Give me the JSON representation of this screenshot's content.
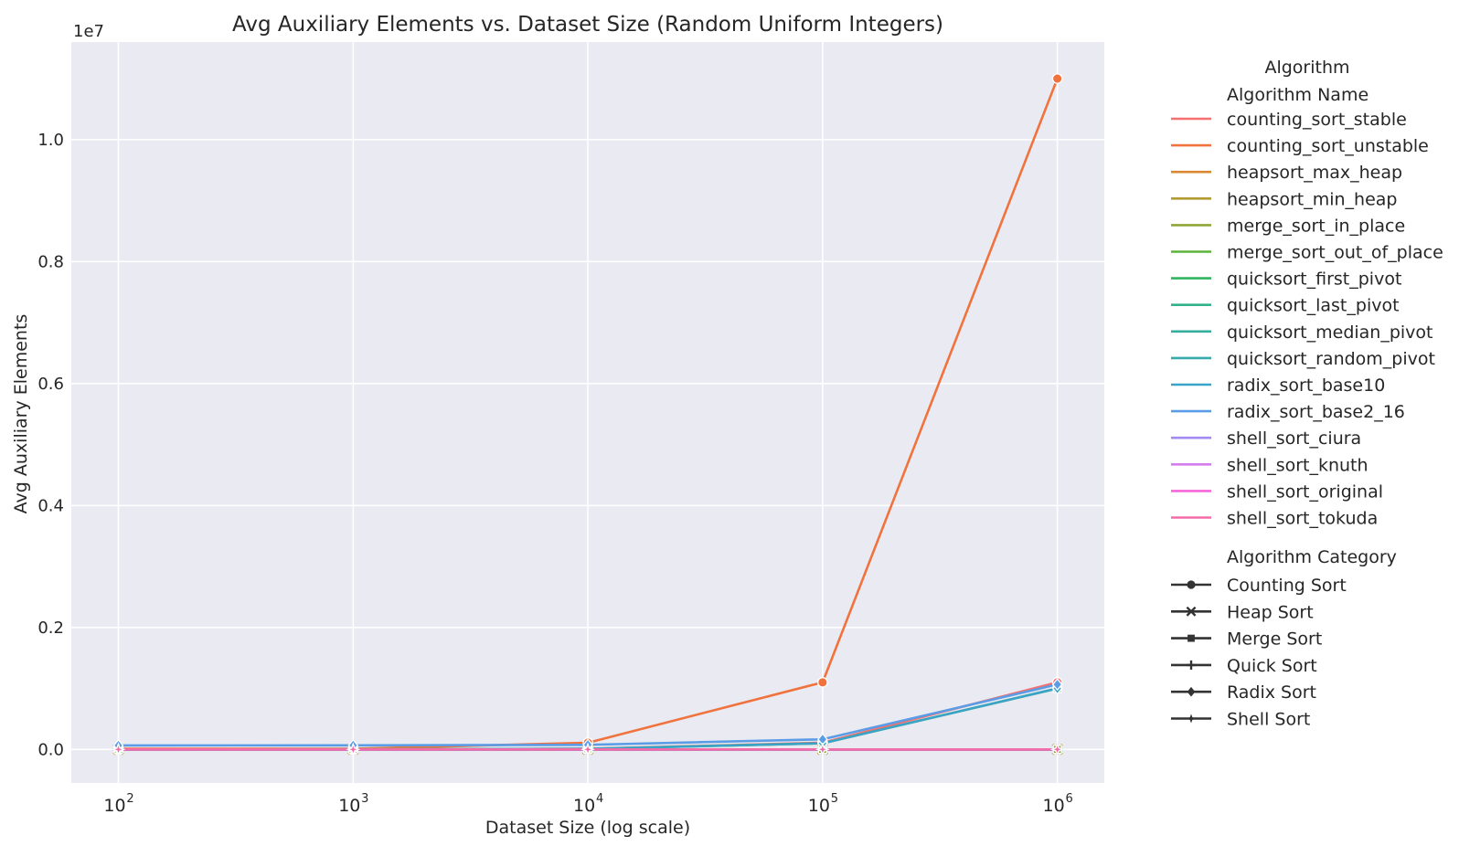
{
  "chart_data": {
    "type": "line",
    "title": "Avg Auxiliary Elements vs. Dataset Size (Random Uniform Integers)",
    "xlabel": "Dataset Size (log scale)",
    "ylabel": "Avg Auxiliary Elements",
    "x_scale": "log",
    "x": [
      100,
      1000,
      10000,
      100000,
      1000000
    ],
    "x_tick_labels": [
      {
        "base": "10",
        "exp": "2"
      },
      {
        "base": "10",
        "exp": "3"
      },
      {
        "base": "10",
        "exp": "4"
      },
      {
        "base": "10",
        "exp": "5"
      },
      {
        "base": "10",
        "exp": "6"
      }
    ],
    "xlim": [
      63,
      1585000
    ],
    "ylim": [
      -550000,
      11600000
    ],
    "y_ticks": [
      0,
      2000000,
      4000000,
      6000000,
      8000000,
      10000000
    ],
    "y_tick_labels": [
      "0.0",
      "0.2",
      "0.4",
      "0.6",
      "0.8",
      "1.0"
    ],
    "y_offset_label": "1e7",
    "grid": true,
    "series": [
      {
        "name": "counting_sort_stable",
        "category": "Counting Sort",
        "color": "#f7706f",
        "values": [
          110,
          1100,
          11000,
          110000,
          1100000
        ]
      },
      {
        "name": "counting_sort_unstable",
        "category": "Counting Sort",
        "color": "#f0733e",
        "values": [
          11000,
          11000,
          110000,
          1100000,
          11000000
        ]
      },
      {
        "name": "heapsort_max_heap",
        "category": "Heap Sort",
        "color": "#d98831",
        "values": [
          0,
          0,
          0,
          0,
          0
        ]
      },
      {
        "name": "heapsort_min_heap",
        "category": "Heap Sort",
        "color": "#b39b34",
        "values": [
          0,
          0,
          0,
          0,
          0
        ]
      },
      {
        "name": "merge_sort_in_place",
        "category": "Merge Sort",
        "color": "#8fa637",
        "values": [
          0,
          0,
          0,
          0,
          0
        ]
      },
      {
        "name": "merge_sort_out_of_place",
        "category": "Merge Sort",
        "color": "#5bb33a",
        "values": [
          100,
          1000,
          10000,
          100000,
          1000000
        ]
      },
      {
        "name": "quicksort_first_pivot",
        "category": "Quick Sort",
        "color": "#2fb55e",
        "values": [
          10,
          15,
          20,
          25,
          30
        ]
      },
      {
        "name": "quicksort_last_pivot",
        "category": "Quick Sort",
        "color": "#33b18a",
        "values": [
          10,
          15,
          20,
          25,
          30
        ]
      },
      {
        "name": "quicksort_median_pivot",
        "category": "Quick Sort",
        "color": "#35ad9c",
        "values": [
          10,
          15,
          20,
          25,
          30
        ]
      },
      {
        "name": "quicksort_random_pivot",
        "category": "Quick Sort",
        "color": "#37aaab",
        "values": [
          10,
          15,
          20,
          25,
          30
        ]
      },
      {
        "name": "radix_sort_base10",
        "category": "Radix Sort",
        "color": "#3aa4c8",
        "values": [
          110,
          1010,
          10010,
          100010,
          1000010
        ]
      },
      {
        "name": "radix_sort_base2_16",
        "category": "Radix Sort",
        "color": "#5a9ce6",
        "values": [
          65636,
          66536,
          75536,
          165536,
          1065536
        ]
      },
      {
        "name": "shell_sort_ciura",
        "category": "Shell Sort",
        "color": "#a28af0",
        "values": [
          0,
          0,
          0,
          0,
          0
        ]
      },
      {
        "name": "shell_sort_knuth",
        "category": "Shell Sort",
        "color": "#d57cee",
        "values": [
          0,
          0,
          0,
          0,
          0
        ]
      },
      {
        "name": "shell_sort_original",
        "category": "Shell Sort",
        "color": "#f567d9",
        "values": [
          0,
          0,
          0,
          0,
          0
        ]
      },
      {
        "name": "shell_sort_tokuda",
        "category": "Shell Sort",
        "color": "#f36ba8",
        "values": [
          0,
          0,
          0,
          0,
          0
        ]
      }
    ],
    "legend": {
      "placement": "outside-right",
      "title": "Algorithm",
      "hue_title": "Algorithm Name",
      "style_title": "Algorithm Category",
      "categories": [
        {
          "name": "Counting Sort",
          "marker": "circle"
        },
        {
          "name": "Heap Sort",
          "marker": "x"
        },
        {
          "name": "Merge Sort",
          "marker": "square"
        },
        {
          "name": "Quick Sort",
          "marker": "plus"
        },
        {
          "name": "Radix Sort",
          "marker": "diamond"
        },
        {
          "name": "Shell Sort",
          "marker": "star"
        }
      ]
    },
    "colors": {
      "plot_background": "#eaeaf2",
      "grid": "#ffffff",
      "text": "#262626"
    }
  }
}
